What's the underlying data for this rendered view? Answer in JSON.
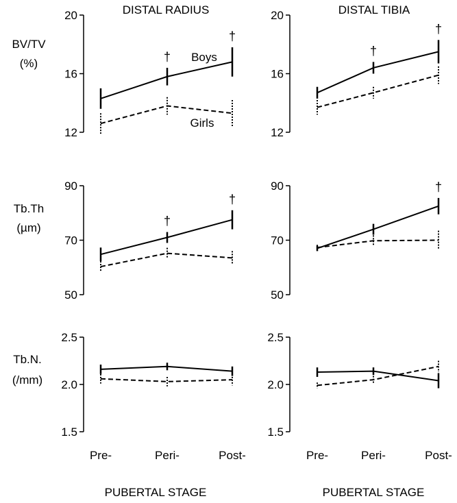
{
  "columns": [
    {
      "id": "radius",
      "title": "DISTAL RADIUS",
      "xlabel": "PUBERTAL STAGE"
    },
    {
      "id": "tibia",
      "title": "DISTAL TIBIA",
      "xlabel": "PUBERTAL STAGE"
    }
  ],
  "rows": [
    {
      "id": "bvtv",
      "label_lines": [
        "BV/TV",
        "(%)"
      ]
    },
    {
      "id": "tbth",
      "label_lines": [
        "Tb.Th",
        "(µm)"
      ]
    },
    {
      "id": "tbn",
      "label_lines": [
        "Tb.N.",
        "(/mm)"
      ]
    }
  ],
  "annotations": {
    "boys": "Boys",
    "girls": "Girls",
    "significance": "†"
  },
  "chart_data": [
    {
      "type": "line",
      "panel": "radius-bvtv",
      "col": 0,
      "row": 0,
      "categories": [
        "Pre-",
        "Peri-",
        "Post-"
      ],
      "ylim": [
        12,
        20
      ],
      "yticks": [
        "12",
        "16",
        "20"
      ],
      "series": [
        {
          "name": "Boys",
          "style": "solid",
          "values": [
            14.3,
            15.8,
            16.8
          ],
          "err": [
            0.7,
            0.6,
            1.0
          ],
          "significant": [
            false,
            true,
            true
          ]
        },
        {
          "name": "Girls",
          "style": "dashed",
          "values": [
            12.6,
            13.8,
            13.3
          ],
          "err": [
            0.7,
            0.6,
            0.9
          ]
        }
      ]
    },
    {
      "type": "line",
      "panel": "tibia-bvtv",
      "col": 1,
      "row": 0,
      "categories": [
        "Pre-",
        "Peri-",
        "Post-"
      ],
      "ylim": [
        12,
        20
      ],
      "yticks": [
        "12",
        "16",
        "20"
      ],
      "series": [
        {
          "name": "Boys",
          "style": "solid",
          "values": [
            14.7,
            16.4,
            17.5
          ],
          "err": [
            0.4,
            0.4,
            0.8
          ],
          "significant": [
            false,
            true,
            true
          ]
        },
        {
          "name": "Girls",
          "style": "dashed",
          "values": [
            13.7,
            14.7,
            15.9
          ],
          "err": [
            0.5,
            0.4,
            0.6
          ]
        }
      ]
    },
    {
      "type": "line",
      "panel": "radius-tbth",
      "col": 0,
      "row": 1,
      "categories": [
        "Pre-",
        "Peri-",
        "Post-"
      ],
      "ylim": [
        50,
        90
      ],
      "yticks": [
        "50",
        "70",
        "90"
      ],
      "series": [
        {
          "name": "Boys",
          "style": "solid",
          "values": [
            64.8,
            71.0,
            77.5
          ],
          "err": [
            2.5,
            2.0,
            3.5
          ],
          "significant": [
            false,
            true,
            true
          ]
        },
        {
          "name": "Girls",
          "style": "dashed",
          "values": [
            60.3,
            65.2,
            63.5
          ],
          "err": [
            2.0,
            2.0,
            2.5
          ]
        }
      ]
    },
    {
      "type": "line",
      "panel": "tibia-tbth",
      "col": 1,
      "row": 1,
      "categories": [
        "Pre-",
        "Peri-",
        "Post-"
      ],
      "ylim": [
        50,
        90
      ],
      "yticks": [
        "50",
        "70",
        "90"
      ],
      "series": [
        {
          "name": "Boys",
          "style": "solid",
          "values": [
            67.0,
            74.0,
            82.5
          ],
          "err": [
            1.0,
            2.0,
            3.0
          ],
          "significant": [
            false,
            false,
            true
          ]
        },
        {
          "name": "Girls",
          "style": "dashed",
          "values": [
            67.3,
            69.8,
            70.0
          ],
          "err": [
            1.0,
            2.0,
            3.5
          ]
        }
      ]
    },
    {
      "type": "line",
      "panel": "radius-tbn",
      "col": 0,
      "row": 2,
      "categories": [
        "Pre-",
        "Peri-",
        "Post-"
      ],
      "ylim": [
        1.5,
        2.5
      ],
      "yticks": [
        "1.5",
        "2.0",
        "2.5"
      ],
      "series": [
        {
          "name": "Boys",
          "style": "solid",
          "values": [
            2.16,
            2.19,
            2.14
          ],
          "err": [
            0.05,
            0.04,
            0.05
          ]
        },
        {
          "name": "Girls",
          "style": "dashed",
          "values": [
            2.06,
            2.03,
            2.05
          ],
          "err": [
            0.05,
            0.05,
            0.06
          ]
        }
      ]
    },
    {
      "type": "line",
      "panel": "tibia-tbn",
      "col": 1,
      "row": 2,
      "categories": [
        "Pre-",
        "Peri-",
        "Post-"
      ],
      "ylim": [
        1.5,
        2.5
      ],
      "yticks": [
        "1.5",
        "2.0",
        "2.5"
      ],
      "series": [
        {
          "name": "Boys",
          "style": "solid",
          "values": [
            2.13,
            2.14,
            2.04
          ],
          "err": [
            0.05,
            0.04,
            0.08
          ]
        },
        {
          "name": "Girls",
          "style": "dashed",
          "values": [
            1.99,
            2.05,
            2.19
          ],
          "err": [
            0.03,
            0.04,
            0.06
          ]
        }
      ]
    }
  ]
}
